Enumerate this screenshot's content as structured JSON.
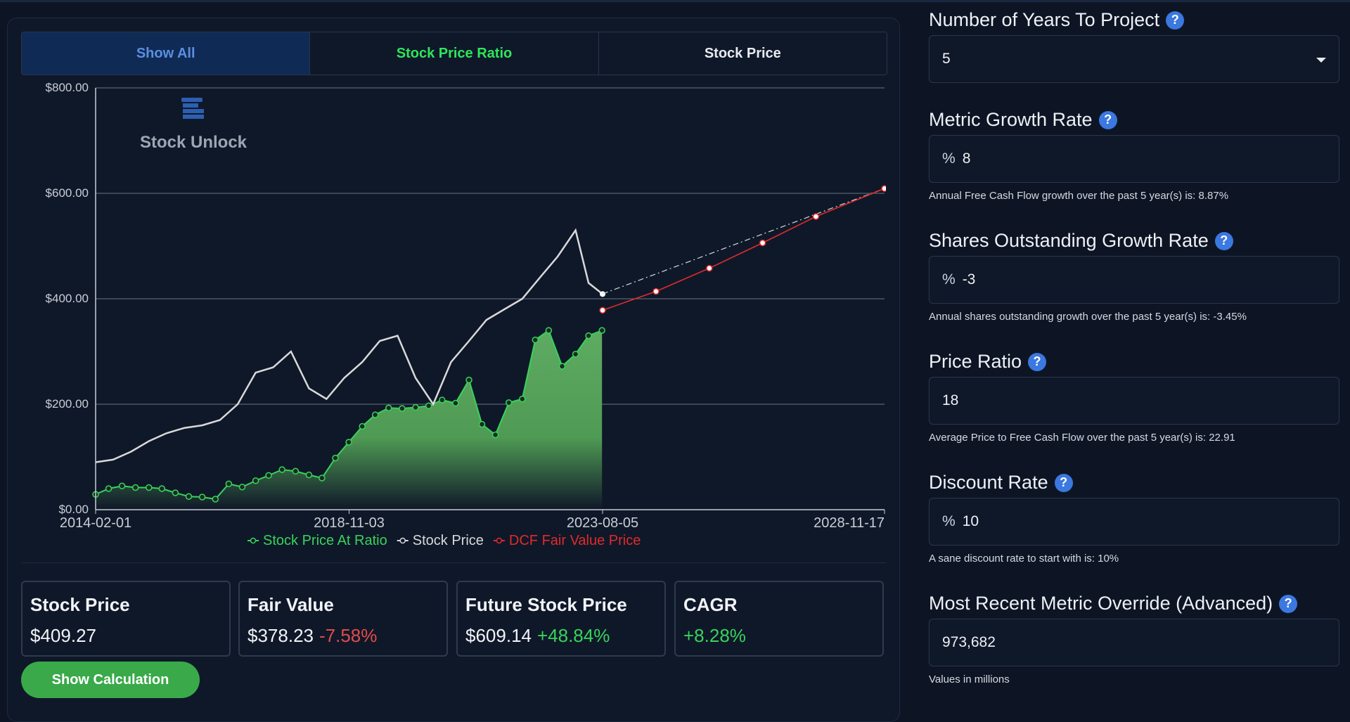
{
  "tabs": {
    "show_all": "Show All",
    "stock_price_ratio": "Stock Price Ratio",
    "stock_price": "Stock Price"
  },
  "watermark": "Stock Unlock",
  "colors": {
    "accent_green": "#38d35a",
    "negative_red": "#e24b4b",
    "link_blue": "#3b78e0",
    "gray_series": "#d9d9d9",
    "dcf_red": "#e02b2b"
  },
  "chart_data": {
    "type": "line",
    "ylim": [
      0,
      800
    ],
    "yticks": [
      "$800.00",
      "$600.00",
      "$400.00",
      "$200.00",
      "$0.00"
    ],
    "xticks": [
      "2014-02-01",
      "2018-11-03",
      "2023-08-05",
      "2028-11-17"
    ],
    "grid": true,
    "legend_position": "bottom",
    "series": [
      {
        "name": "Stock Price At Ratio",
        "color": "#38d35a",
        "x": [
          "2014-02-01",
          "2014-05-01",
          "2014-08-01",
          "2014-11-01",
          "2015-02-01",
          "2015-05-01",
          "2015-08-01",
          "2015-11-01",
          "2016-02-01",
          "2016-05-01",
          "2016-08-01",
          "2016-11-01",
          "2017-02-01",
          "2017-05-01",
          "2017-08-01",
          "2017-11-01",
          "2018-02-01",
          "2018-05-01",
          "2018-08-01",
          "2018-11-01",
          "2019-02-01",
          "2019-05-01",
          "2019-08-01",
          "2019-11-01",
          "2020-02-01",
          "2020-05-01",
          "2020-08-01",
          "2020-11-01",
          "2021-02-01",
          "2021-05-01",
          "2021-08-01",
          "2021-11-01",
          "2022-02-01",
          "2022-05-01",
          "2022-08-01",
          "2022-11-01",
          "2023-02-01",
          "2023-05-01",
          "2023-08-01"
        ],
        "values": [
          29,
          40,
          45,
          42,
          42,
          40,
          32,
          25,
          24,
          20,
          49,
          43,
          55,
          65,
          76,
          73,
          66,
          60,
          98,
          128,
          158,
          180,
          193,
          192,
          194,
          197,
          208,
          202,
          246,
          162,
          142,
          203,
          210,
          322,
          340,
          272,
          295,
          330,
          340
        ]
      },
      {
        "name": "Stock Price",
        "color": "#d9d9d9",
        "x": [
          "2014-02-01",
          "2014-06-01",
          "2014-10-01",
          "2015-02-01",
          "2015-06-01",
          "2015-10-01",
          "2016-02-01",
          "2016-06-01",
          "2016-10-01",
          "2017-02-01",
          "2017-06-01",
          "2017-10-01",
          "2018-02-01",
          "2018-06-01",
          "2018-10-01",
          "2019-02-01",
          "2019-06-01",
          "2019-10-01",
          "2020-02-01",
          "2020-06-01",
          "2020-10-01",
          "2021-02-01",
          "2021-06-01",
          "2021-10-01",
          "2022-02-01",
          "2022-06-01",
          "2022-10-01",
          "2023-02-01",
          "2023-05-01",
          "2023-08-05"
        ],
        "values": [
          90,
          95,
          110,
          130,
          145,
          155,
          160,
          170,
          200,
          260,
          270,
          300,
          230,
          210,
          250,
          280,
          320,
          330,
          250,
          200,
          280,
          320,
          360,
          380,
          400,
          440,
          480,
          530,
          430,
          409
        ]
      },
      {
        "name": "DCF Fair Value Price",
        "color": "#e02b2b",
        "x": [
          "2023-08-05",
          "2024-08-05",
          "2025-08-05",
          "2026-08-05",
          "2027-08-05",
          "2028-11-17"
        ],
        "values": [
          378.23,
          414,
          458,
          506,
          556,
          609.14
        ]
      }
    ],
    "projection_line": {
      "x": [
        "2023-08-05",
        "2028-11-17"
      ],
      "values": [
        409.27,
        609.14
      ]
    }
  },
  "cards": [
    {
      "title": "Stock Price",
      "value": "$409.27",
      "change": ""
    },
    {
      "title": "Fair Value",
      "value": "$378.23",
      "change": "-7.58%"
    },
    {
      "title": "Future Stock Price",
      "value": "$609.14",
      "change": "+48.84%"
    },
    {
      "title": "CAGR",
      "value": "",
      "change": "+8.28%"
    }
  ],
  "show_calc": "Show Calculation",
  "fields": {
    "years": {
      "label": "Number of Years To Project",
      "value": "5"
    },
    "metric_growth": {
      "label": "Metric Growth Rate",
      "prefix": "%",
      "value": "8",
      "hint": "Annual Free Cash Flow growth over the past 5 year(s) is: 8.87%"
    },
    "shares_growth": {
      "label": "Shares Outstanding Growth Rate",
      "prefix": "%",
      "value": "-3",
      "hint": "Annual shares outstanding growth over the past 5 year(s) is: -3.45%"
    },
    "price_ratio": {
      "label": "Price Ratio",
      "value": "18",
      "hint": "Average Price to Free Cash Flow over the past 5 year(s) is: 22.91"
    },
    "discount": {
      "label": "Discount Rate",
      "prefix": "%",
      "value": "10",
      "hint": "A sane discount rate to start with is: 10%"
    },
    "override": {
      "label": "Most Recent Metric Override (Advanced)",
      "value": "973,682",
      "hint": "Values in millions"
    }
  },
  "help_icon": "?"
}
